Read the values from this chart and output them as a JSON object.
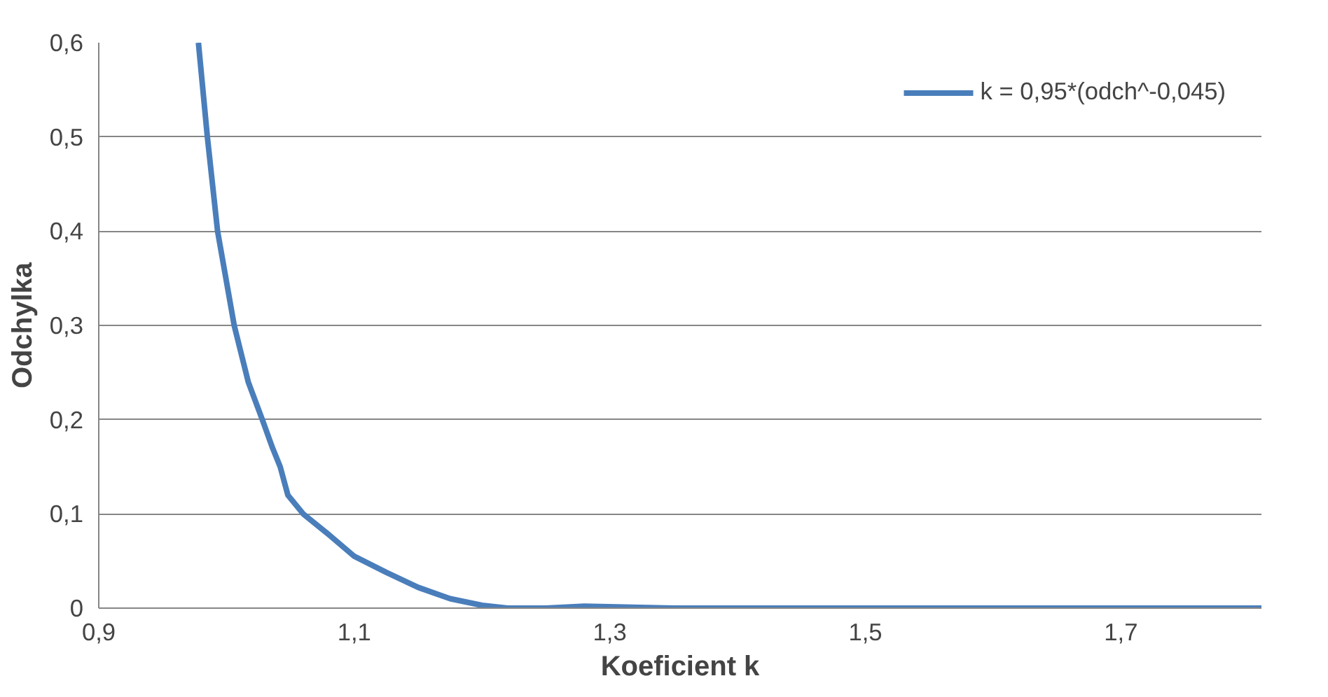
{
  "chart_data": {
    "type": "line",
    "xlabel": "Koeficient k",
    "ylabel": "Odchylka",
    "x": [
      0.978,
      0.985,
      0.993,
      1.006,
      1.017,
      1.028,
      1.036,
      1.042,
      1.048,
      1.06,
      1.08,
      1.1,
      1.125,
      1.15,
      1.175,
      1.2,
      1.22,
      1.25,
      1.28,
      1.35,
      1.5,
      1.7,
      1.81
    ],
    "series": [
      {
        "name": "k = 0,95*(odch^-0,045)",
        "color": "#4a7ebb",
        "values": [
          0.6,
          0.5,
          0.4,
          0.3,
          0.24,
          0.2,
          0.17,
          0.15,
          0.12,
          0.1,
          0.078,
          0.055,
          0.038,
          0.022,
          0.01,
          0.003,
          0,
          0,
          0.002,
          0,
          0,
          0,
          0
        ]
      }
    ],
    "xlim": [
      0.9,
      1.81
    ],
    "ylim": [
      0,
      0.6
    ],
    "xticks": [
      {
        "value": 0.9,
        "label": "0,9"
      },
      {
        "value": 1.1,
        "label": "1,1"
      },
      {
        "value": 1.3,
        "label": "1,3"
      },
      {
        "value": 1.5,
        "label": "1,5"
      },
      {
        "value": 1.7,
        "label": "1,7"
      }
    ],
    "yticks": [
      {
        "value": 0,
        "label": "0"
      },
      {
        "value": 0.1,
        "label": "0,1"
      },
      {
        "value": 0.2,
        "label": "0,2"
      },
      {
        "value": 0.3,
        "label": "0,3"
      },
      {
        "value": 0.4,
        "label": "0,4"
      },
      {
        "value": 0.5,
        "label": "0,5"
      },
      {
        "value": 0.6,
        "label": "0,6"
      }
    ],
    "grid": "y",
    "legend": "top right",
    "line_style": "solid",
    "marker": "none"
  }
}
